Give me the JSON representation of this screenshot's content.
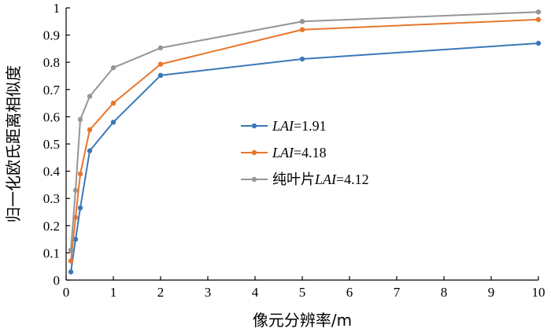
{
  "chart_data": {
    "type": "line",
    "title": "",
    "xlabel": "像元分辨率/m",
    "ylabel": "归一化欧氏距离相似度",
    "xlim": [
      0,
      10
    ],
    "ylim": [
      0,
      1
    ],
    "xticks": [
      0,
      1,
      2,
      3,
      4,
      5,
      6,
      7,
      8,
      9,
      10
    ],
    "yticks": [
      0,
      0.1,
      0.2,
      0.3,
      0.4,
      0.5,
      0.6,
      0.7,
      0.8,
      0.9,
      1
    ],
    "ytick_labels": [
      "0",
      "0.1",
      "0.2",
      "0.3",
      "0.4",
      "0.5",
      "0.6",
      "0.7",
      "0.8",
      "0.9",
      "1"
    ],
    "grid": false,
    "legend_position": "center",
    "x": [
      0.1,
      0.2,
      0.3,
      0.5,
      1,
      2,
      5,
      10
    ],
    "series": [
      {
        "legend": {
          "prefix": "",
          "italic": "LAI",
          "suffix": "=1.91"
        },
        "color": "#3b78b8",
        "values": [
          0.03,
          0.15,
          0.265,
          0.475,
          0.58,
          0.752,
          0.812,
          0.87
        ]
      },
      {
        "legend": {
          "prefix": "",
          "italic": "LAI",
          "suffix": "=4.18"
        },
        "color": "#e8762d",
        "values": [
          0.07,
          0.23,
          0.39,
          0.552,
          0.65,
          0.793,
          0.92,
          0.957
        ]
      },
      {
        "legend": {
          "prefix": "纯叶片",
          "italic": "LAI",
          "suffix": "=4.12"
        },
        "color": "#969696",
        "values": [
          0.11,
          0.33,
          0.59,
          0.675,
          0.78,
          0.853,
          0.95,
          0.985
        ]
      }
    ]
  }
}
